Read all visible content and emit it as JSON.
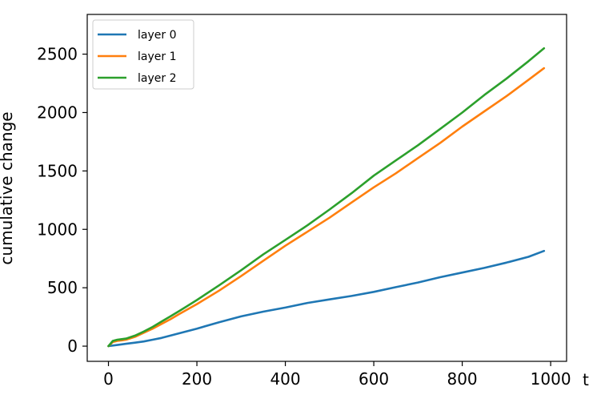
{
  "chart_data": {
    "type": "line",
    "xlabel": "t",
    "ylabel": "cumulative change",
    "xlim": [
      -48,
      1036
    ],
    "ylim": [
      -130,
      2840
    ],
    "xticks": [
      0,
      200,
      400,
      600,
      800,
      1000
    ],
    "yticks": [
      0,
      500,
      1000,
      1500,
      2000,
      2500
    ],
    "x_tick_labels": [
      "0",
      "200",
      "400",
      "600",
      "800",
      "1000"
    ],
    "y_tick_labels": [
      "0",
      "500",
      "1000",
      "1500",
      "2000",
      "2500"
    ],
    "grid": false,
    "legend_position": "top-left",
    "series": [
      {
        "name": "layer 0",
        "color": "#1f77b4",
        "x": [
          0,
          20,
          40,
          60,
          80,
          100,
          120,
          140,
          160,
          200,
          250,
          300,
          350,
          400,
          450,
          500,
          550,
          600,
          650,
          700,
          750,
          800,
          850,
          900,
          950,
          985
        ],
        "y": [
          0,
          10,
          20,
          30,
          40,
          55,
          70,
          90,
          110,
          150,
          205,
          255,
          295,
          330,
          370,
          400,
          430,
          465,
          505,
          545,
          590,
          630,
          670,
          715,
          765,
          815
        ]
      },
      {
        "name": "layer 1",
        "color": "#ff7f0e",
        "x": [
          0,
          10,
          20,
          30,
          40,
          60,
          80,
          100,
          120,
          140,
          160,
          200,
          250,
          300,
          350,
          400,
          450,
          500,
          550,
          600,
          650,
          700,
          750,
          800,
          850,
          900,
          950,
          985
        ],
        "y": [
          0,
          35,
          45,
          50,
          55,
          80,
          115,
          150,
          190,
          230,
          275,
          360,
          475,
          600,
          730,
          860,
          980,
          1100,
          1230,
          1360,
          1480,
          1610,
          1740,
          1880,
          2010,
          2140,
          2280,
          2380
        ]
      },
      {
        "name": "layer 2",
        "color": "#2ca02c",
        "x": [
          0,
          10,
          20,
          30,
          40,
          60,
          80,
          100,
          120,
          140,
          160,
          200,
          250,
          300,
          350,
          400,
          450,
          500,
          550,
          600,
          650,
          700,
          750,
          800,
          850,
          900,
          950,
          985
        ],
        "y": [
          0,
          45,
          55,
          60,
          65,
          90,
          125,
          165,
          210,
          255,
          300,
          395,
          520,
          650,
          785,
          910,
          1035,
          1170,
          1310,
          1460,
          1590,
          1720,
          1860,
          2000,
          2150,
          2290,
          2440,
          2550
        ]
      }
    ]
  }
}
